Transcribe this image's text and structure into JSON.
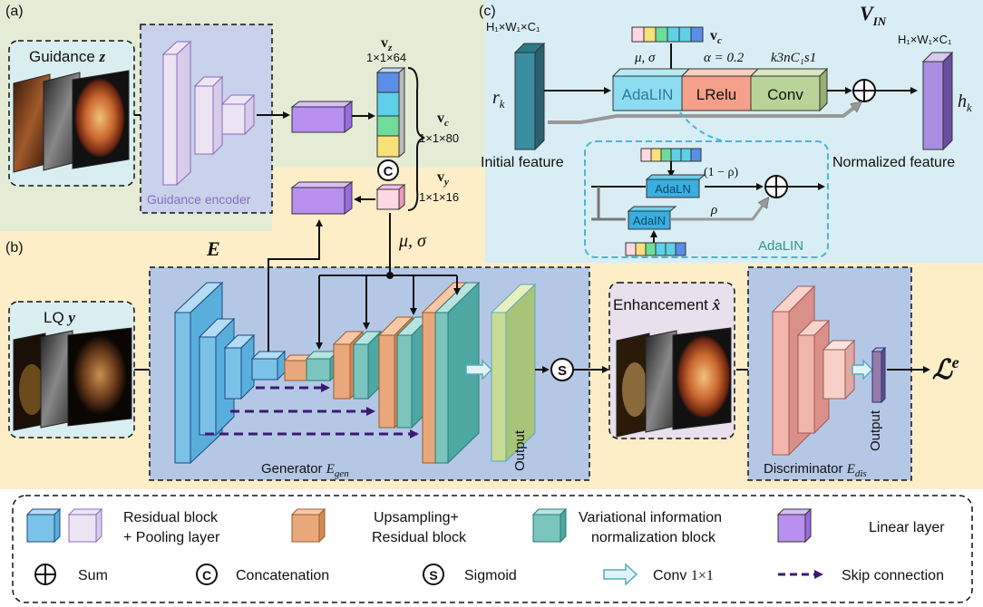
{
  "panels": {
    "a": "(a)",
    "b": "(b)",
    "c": "(c)"
  },
  "guidance": {
    "label": "Guidance",
    "var": "z",
    "encoder": "Guidance encoder"
  },
  "vectors": {
    "vz_dim": "1×1×64",
    "vc_dim": "1×1×80",
    "vy_dim": "1×1×16",
    "vz": "v",
    "vz_sub": "z",
    "vc": "v",
    "vc_sub": "c",
    "vy": "v",
    "vy_sub": "y",
    "concat_symbol": "C",
    "mu_sigma": "μ, σ"
  },
  "lq": {
    "label": "LQ",
    "var": "y"
  },
  "generator": {
    "E": "E",
    "label": "Generator",
    "sub": "gen",
    "output": "Output",
    "sigmoid": "S"
  },
  "enhancement": {
    "label": "Enhancement",
    "var": "x̂"
  },
  "discriminator": {
    "label": "Discriminator",
    "sub": "dis",
    "output": "Output",
    "loss": "ℒ",
    "loss_sup": "e"
  },
  "vin": {
    "title": "V",
    "title_sub": "IN",
    "dim_in": "H₁×W₁×C₁",
    "dim_out": "H₁×W₁×C₁",
    "rk": "r",
    "rk_sub": "k",
    "hk": "h",
    "hk_sub": "k",
    "initial": "Initial feature",
    "normalized": "Normalized feature",
    "vc": "v",
    "vc_sub": "c",
    "mu_sigma": "μ, σ",
    "alpha": "α = 0.2",
    "conv_param": "k3nC₁s1",
    "adalin": "AdaLIN",
    "lrelu": "LRelu",
    "conv": "Conv",
    "sub_adaln": "AdaLN",
    "sub_adain": "AdaIN",
    "one_minus_rho": "(1 − ρ)",
    "rho": "ρ",
    "adalin_caption": "AdaLIN"
  },
  "legend": {
    "res_block": "Residual block",
    "res_block_2": "+ Pooling layer",
    "upsampling": "Upsampling+",
    "upsampling_2": "Residual block",
    "var_norm": "Variational information",
    "var_norm_2": "normalization block",
    "linear": "Linear layer",
    "sum": "Sum",
    "concat": "Concatenation",
    "sigmoid": "Sigmoid",
    "conv": "Conv",
    "conv_size": "1×1",
    "skip": "Skip connection"
  },
  "colors": {
    "panel_a_bg": "#e4ecd6",
    "panel_b_bg": "#fdeec8",
    "panel_c_bg": "#d9eef4",
    "generator_bg": "#b4c8e6",
    "encoder_bg": "#c8d2ea",
    "linear": "#b98ff0",
    "resblock": "#7bc2e9",
    "upsample": "#e9a87c",
    "varnorm": "#7cc4be",
    "output": "#c8dc94",
    "disc_block": "#f1b5ac",
    "skip": "#3c1a70"
  }
}
